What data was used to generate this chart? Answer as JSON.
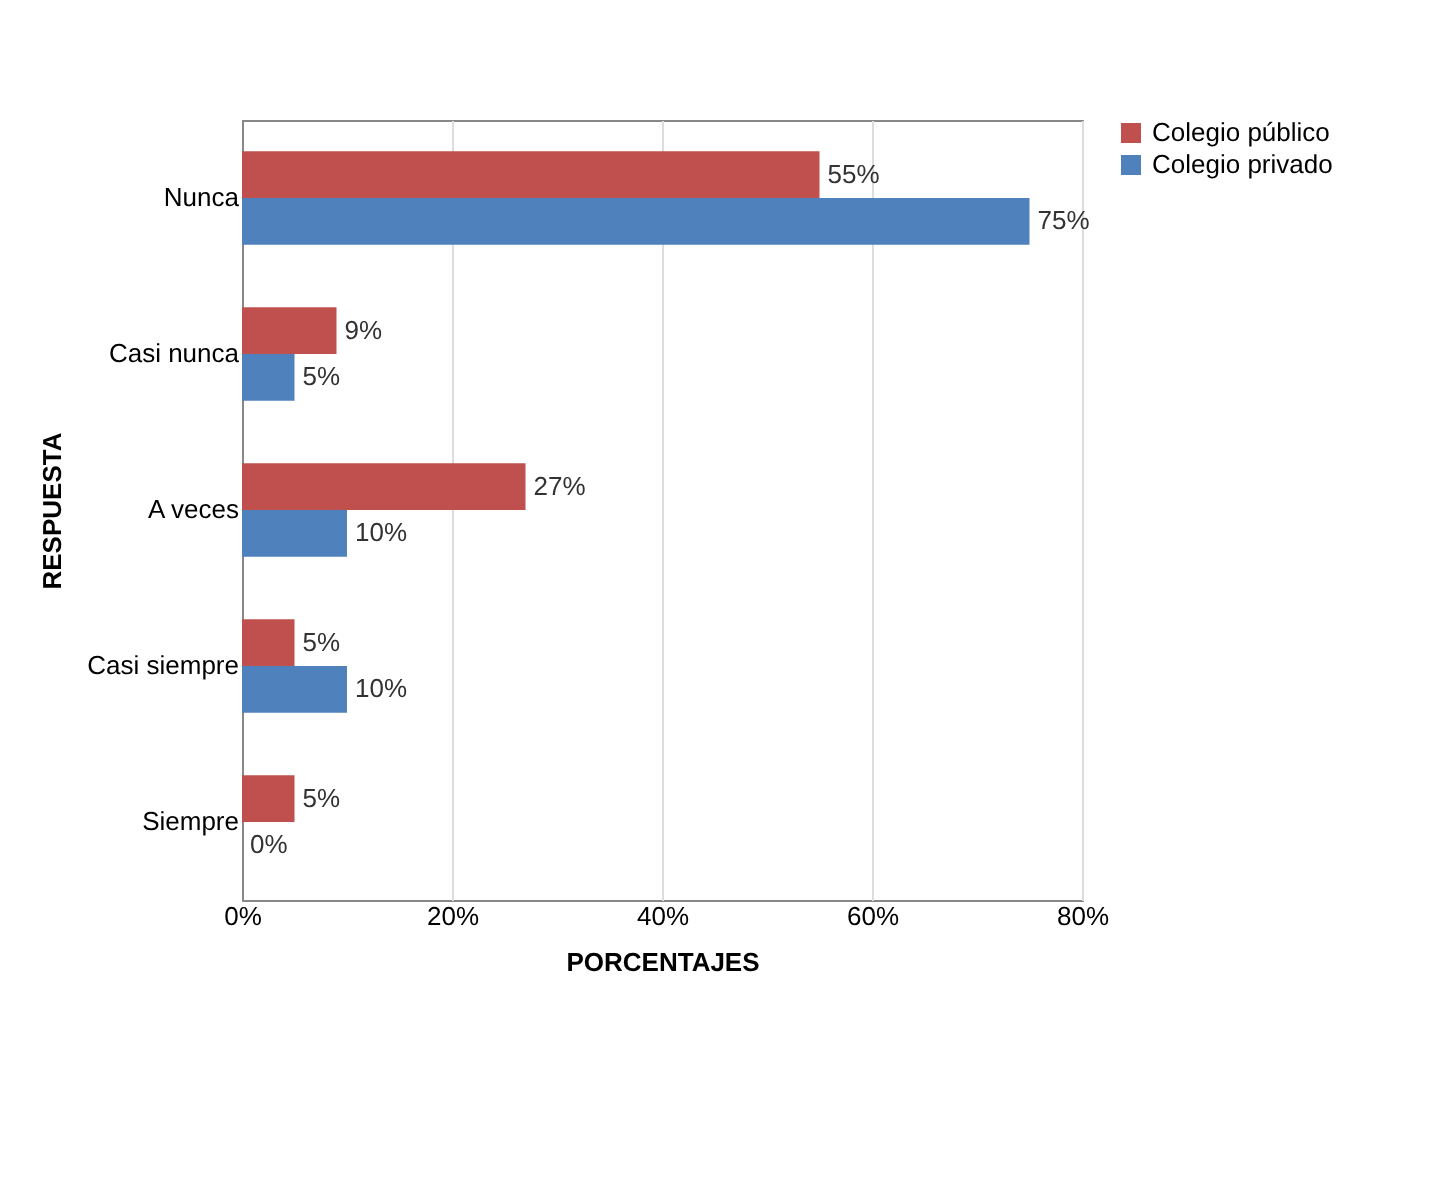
{
  "chart_data": {
    "type": "bar",
    "orientation": "horizontal",
    "xlabel": "PORCENTAJES",
    "ylabel": "RESPUESTA",
    "categories": [
      "Nunca",
      "Casi nunca",
      "A veces",
      "Casi siempre",
      "Siempre"
    ],
    "series": [
      {
        "name": "Colegio público",
        "color": "#c0504d",
        "values": [
          55,
          9,
          27,
          5,
          5
        ],
        "value_labels": [
          "55%",
          "9%",
          "27%",
          "5%",
          "5%"
        ]
      },
      {
        "name": "Colegio privado",
        "color": "#4f81bd",
        "values": [
          75,
          5,
          10,
          10,
          0
        ],
        "value_labels": [
          "75%",
          "5%",
          "10%",
          "10%",
          "0%"
        ]
      }
    ],
    "xlim": [
      0,
      80
    ],
    "xticks": [
      {
        "value": 0,
        "label": "0%"
      },
      {
        "value": 20,
        "label": "20%"
      },
      {
        "value": 40,
        "label": "40%"
      },
      {
        "value": 60,
        "label": "60%"
      },
      {
        "value": 80,
        "label": "80%"
      }
    ],
    "grid": "x",
    "legend": "right"
  }
}
